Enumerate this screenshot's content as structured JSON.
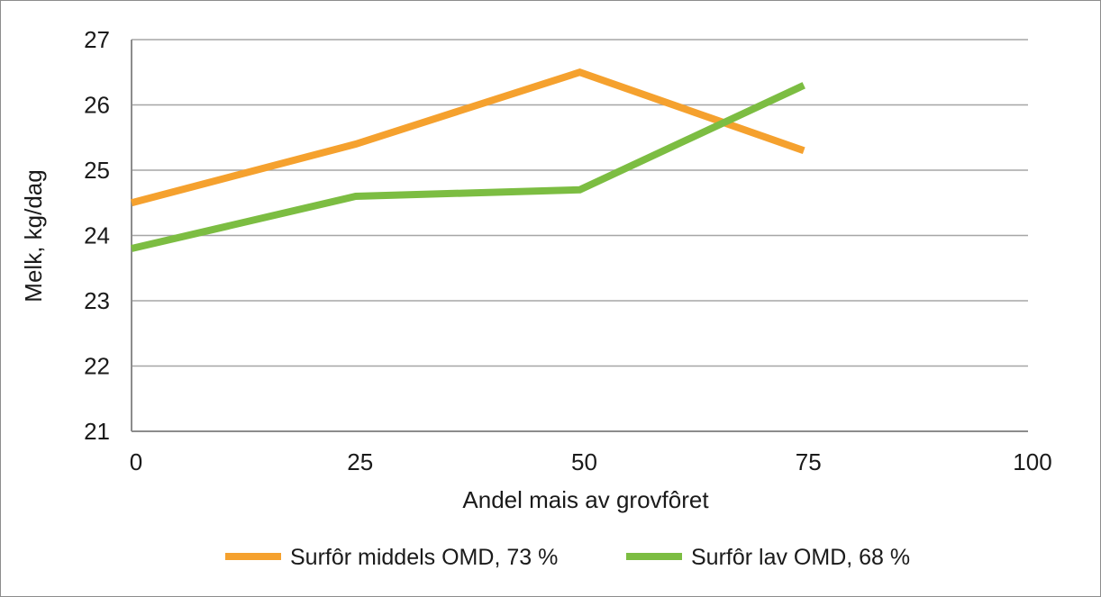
{
  "chart_data": {
    "type": "line",
    "xlabel": "Andel mais av grovfôret",
    "ylabel": "Melk, kg/dag",
    "xlim": [
      0,
      100
    ],
    "ylim": [
      21,
      27
    ],
    "x_ticks": [
      "0",
      "25",
      "50",
      "75",
      "100"
    ],
    "y_ticks": [
      "21",
      "22",
      "23",
      "24",
      "25",
      "26",
      "27"
    ],
    "x": [
      0,
      25,
      50,
      75
    ],
    "grid": "horizontal",
    "legend_position": "bottom",
    "series": [
      {
        "name": "Surfôr middels OMD, 73 %",
        "color": "#f5a12e",
        "values": [
          24.5,
          25.4,
          26.5,
          25.3
        ]
      },
      {
        "name": "Surfôr lav OMD, 68 %",
        "color": "#7cbd42",
        "values": [
          23.8,
          24.6,
          24.7,
          26.3
        ]
      }
    ]
  }
}
